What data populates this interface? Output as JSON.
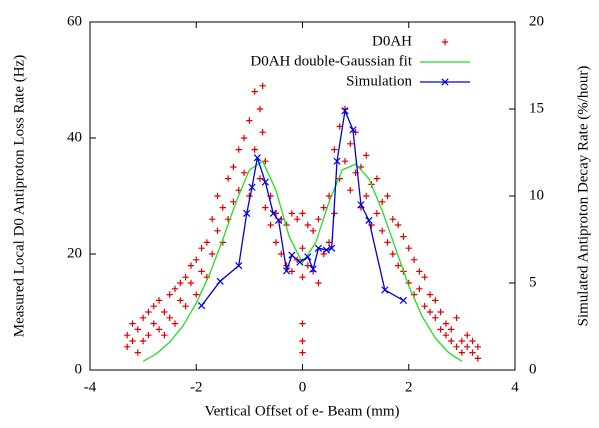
{
  "chart_data": {
    "type": "scatter",
    "xlabel": "Vertical Offset of e- Beam (mm)",
    "ylabel": "Measured Local D0 Antiproton Loss Rate (Hz)",
    "y2label": "Simulated Antiproton Decay Rate (%/hour)",
    "xlim": [
      -4,
      4
    ],
    "xticks": [
      -4,
      -2,
      0,
      2,
      4
    ],
    "ylim": [
      0,
      60
    ],
    "yticks": [
      0,
      20,
      40,
      60
    ],
    "y2lim": [
      0,
      20
    ],
    "y2ticks": [
      0,
      5,
      10,
      15,
      20
    ],
    "legend": "upper right",
    "grid": false,
    "series": [
      {
        "name": "D0AH",
        "color": "#e00000",
        "marker": "plus",
        "line": false,
        "x": [
          -3.3,
          -3.3,
          -3.2,
          -3.2,
          -3.1,
          -3.1,
          -3.0,
          -3.0,
          -2.9,
          -2.9,
          -2.8,
          -2.8,
          -2.7,
          -2.7,
          -2.6,
          -2.6,
          -2.5,
          -2.5,
          -2.4,
          -2.4,
          -2.3,
          -2.3,
          -2.2,
          -2.2,
          -2.1,
          -2.1,
          -2.0,
          -2.0,
          -1.9,
          -1.9,
          -1.8,
          -1.8,
          -1.7,
          -1.7,
          -1.6,
          -1.6,
          -1.5,
          -1.5,
          -1.4,
          -1.4,
          -1.3,
          -1.3,
          -1.2,
          -1.2,
          -1.1,
          -1.1,
          -1.0,
          -1.0,
          -0.9,
          -0.9,
          -0.8,
          -0.8,
          -0.75,
          -0.75,
          -0.7,
          -0.7,
          -0.6,
          -0.6,
          -0.5,
          -0.5,
          -0.4,
          -0.4,
          -0.3,
          -0.3,
          -0.2,
          -0.2,
          -0.1,
          -0.1,
          0,
          0,
          0,
          0,
          0,
          0,
          0.1,
          0.1,
          0.2,
          0.2,
          0.3,
          0.3,
          0.4,
          0.4,
          0.5,
          0.5,
          0.6,
          0.6,
          0.7,
          0.7,
          0.8,
          0.8,
          0.9,
          0.9,
          1.0,
          1.0,
          1.1,
          1.1,
          1.2,
          1.2,
          1.3,
          1.3,
          1.4,
          1.4,
          1.5,
          1.5,
          1.6,
          1.6,
          1.7,
          1.7,
          1.8,
          1.8,
          1.9,
          1.9,
          2.0,
          2.0,
          2.1,
          2.1,
          2.2,
          2.2,
          2.3,
          2.3,
          2.4,
          2.4,
          2.5,
          2.5,
          2.6,
          2.6,
          2.7,
          2.7,
          2.8,
          2.8,
          2.9,
          2.9,
          3.0,
          3.0,
          3.1,
          3.1,
          3.2,
          3.2,
          3.3,
          3.3
        ],
        "values": [
          4,
          6,
          5,
          8,
          7,
          3,
          9,
          5,
          6,
          10,
          8,
          11,
          7,
          12,
          10,
          6,
          9,
          13,
          14,
          8,
          12,
          15,
          11,
          16,
          15,
          18,
          13,
          19,
          17,
          21,
          22,
          16,
          20,
          26,
          24,
          30,
          28,
          22,
          33,
          26,
          35,
          29,
          31,
          38,
          40,
          34,
          43,
          30,
          48,
          38,
          45,
          33,
          49,
          41,
          36,
          28,
          30,
          25,
          27,
          22,
          26,
          20,
          25,
          18,
          27,
          17,
          26,
          19,
          3,
          5,
          8,
          16,
          21,
          27,
          25,
          18,
          24,
          17,
          26,
          15,
          28,
          20,
          30,
          22,
          38,
          27,
          42,
          33,
          45,
          36,
          39,
          31,
          41,
          34,
          35,
          28,
          37,
          30,
          32,
          25,
          33,
          27,
          29,
          24,
          30,
          22,
          26,
          20,
          25,
          18,
          23,
          17,
          21,
          15,
          19,
          13,
          17,
          14,
          16,
          11,
          13,
          10,
          12,
          9,
          10,
          7,
          8,
          6,
          7,
          5,
          9,
          4,
          5,
          3,
          6,
          4,
          3,
          5,
          2,
          4
        ]
      },
      {
        "name": "D0AH double-Gaussian fit",
        "color": "#22dd22",
        "marker": "none",
        "line": true,
        "x": [
          -3,
          -2.75,
          -2.5,
          -2.25,
          -2,
          -1.75,
          -1.5,
          -1.25,
          -1,
          -0.75,
          -0.5,
          -0.25,
          0,
          0.25,
          0.5,
          0.75,
          1,
          1.25,
          1.5,
          1.75,
          2,
          2.25,
          2.5,
          2.75,
          3
        ],
        "values": [
          1.5,
          2.8,
          4.8,
          7.6,
          11.5,
          16.5,
          22.5,
          29,
          34.5,
          36,
          31,
          23,
          18.5,
          22,
          29,
          34.5,
          35.5,
          33,
          27.5,
          21,
          14.5,
          9.3,
          5.5,
          3,
          1.5
        ]
      },
      {
        "name": "Simulation",
        "color": "#0000dd",
        "marker": "cross",
        "line": true,
        "axis": "y2",
        "x": [
          -1.9,
          -1.55,
          -1.2,
          -1.05,
          -0.95,
          -0.85,
          -0.7,
          -0.55,
          -0.45,
          -0.3,
          -0.2,
          -0.05,
          0.1,
          0.2,
          0.3,
          0.45,
          0.55,
          0.65,
          0.8,
          0.95,
          1.1,
          1.25,
          1.55,
          1.9
        ],
        "values": [
          3.7,
          5.1,
          6.0,
          9.0,
          10.5,
          12.2,
          10.8,
          9.0,
          8.6,
          5.7,
          6.6,
          6.2,
          6.5,
          5.8,
          7.0,
          6.9,
          7.0,
          12.0,
          14.9,
          13.8,
          9.5,
          8.6,
          4.6,
          4.0
        ]
      }
    ]
  }
}
